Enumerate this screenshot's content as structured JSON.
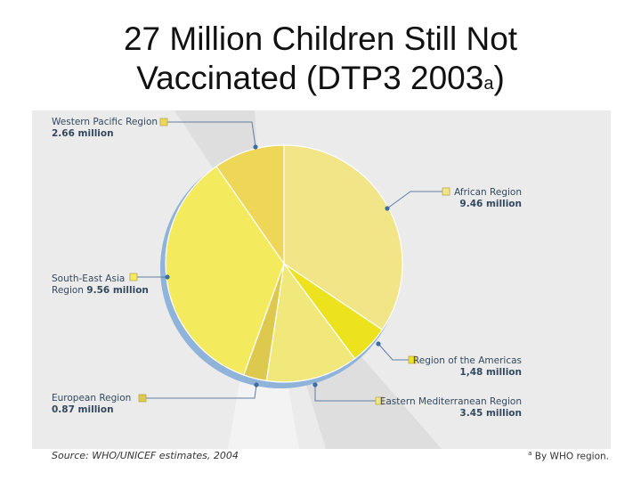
{
  "title": {
    "line1": "27 Million Children Still Not",
    "line2": "Vaccinated (DTP3 2003",
    "superscript": "a",
    "line2_end": ")"
  },
  "source": "Source: WHO/UNICEF estimates, 2004",
  "footnote": {
    "marker": "a",
    "text": " By WHO region."
  },
  "chart_data": {
    "type": "pie",
    "unit": "million",
    "slices": [
      {
        "label": "African Region",
        "value": 9.46,
        "value_text": "9.46 million",
        "color": "#f2e587"
      },
      {
        "label": "Region of the Americas",
        "value": 1.48,
        "value_text": "1,48 million",
        "color": "#ece21e"
      },
      {
        "label": "Eastern Mediterranean Region",
        "value": 3.45,
        "value_text": "3.45 million",
        "color": "#f1e87c"
      },
      {
        "label": "European Region",
        "value": 0.87,
        "value_text": "0.87 million",
        "color": "#ddc94e"
      },
      {
        "label": "South-East Asia Region",
        "value": 9.56,
        "value_text": "9.56 million",
        "color": "#f4ea5e"
      },
      {
        "label": "Western Pacific Region",
        "value": 2.66,
        "value_text": "2.66 million",
        "color": "#eed657"
      }
    ]
  }
}
